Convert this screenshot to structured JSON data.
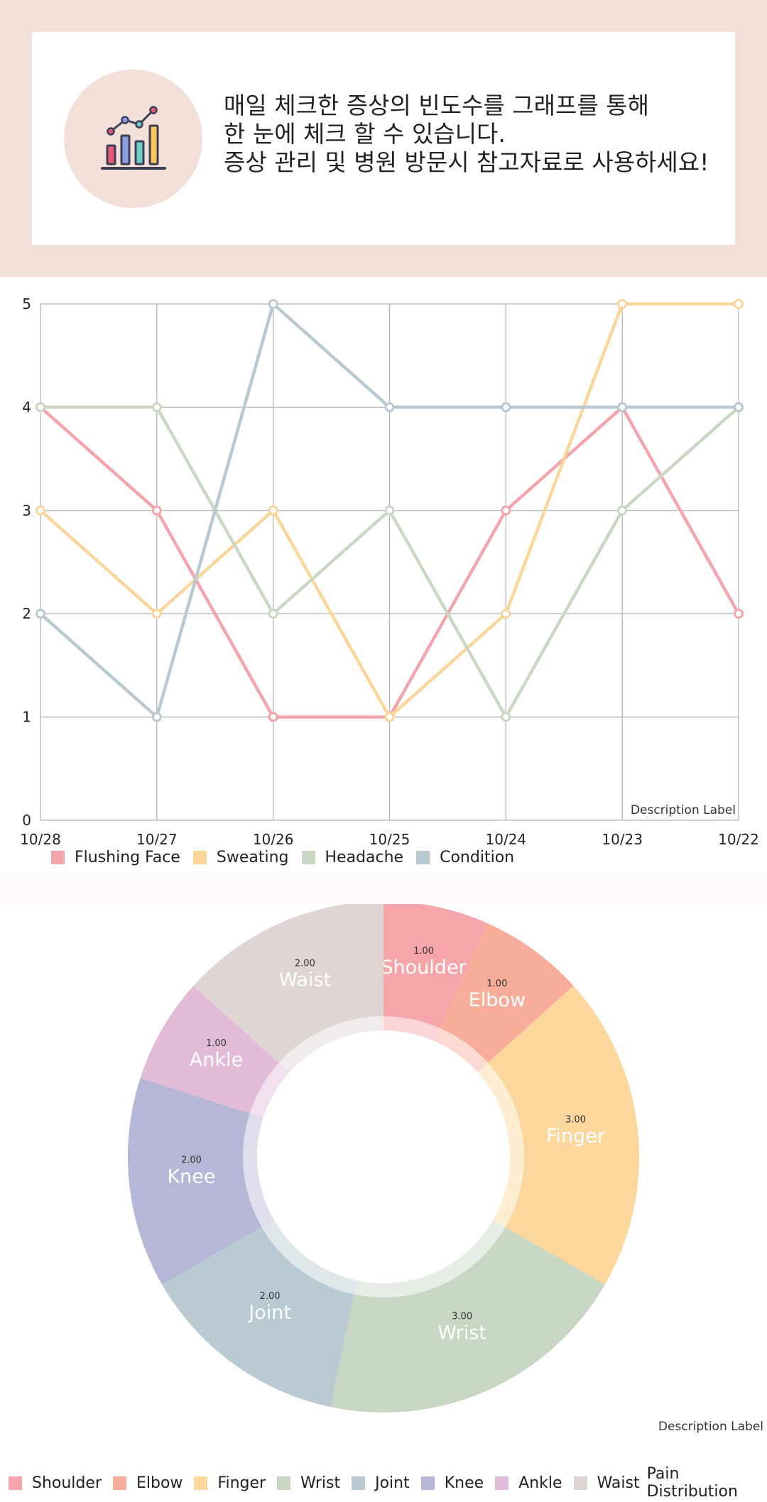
{
  "intro": {
    "lines": [
      "매일 체크한 증상의 빈도수를 그래프를 통해",
      "한 눈에 체크 할 수 있습니다.",
      "증상 관리 및 병원 방문시 참고자료로 사용하세요!"
    ],
    "icon": "bar-chart-icon"
  },
  "chart_data": [
    {
      "type": "line",
      "categories": [
        "10/28",
        "10/27",
        "10/26",
        "10/25",
        "10/24",
        "10/23",
        "10/22"
      ],
      "y_ticks": [
        "0",
        "1",
        "2",
        "3",
        "4",
        "5"
      ],
      "ylim": [
        0,
        5
      ],
      "grid": true,
      "description_label": "Description Label",
      "legend_position": "bottom-left",
      "series": [
        {
          "name": "Flushing Face",
          "color": "#f4a5ab",
          "values": [
            4,
            3,
            1,
            1,
            3,
            4,
            2
          ]
        },
        {
          "name": "Sweating",
          "color": "#fbd69b",
          "values": [
            3,
            2,
            3,
            1,
            2,
            5,
            5
          ]
        },
        {
          "name": "Headache",
          "color": "#c9d7c3",
          "values": [
            4,
            4,
            2,
            3,
            1,
            3,
            4
          ]
        },
        {
          "name": "Condition",
          "color": "#b9c9d1",
          "values": [
            2,
            1,
            5,
            4,
            4,
            4,
            4
          ]
        }
      ]
    },
    {
      "type": "pie",
      "donut": true,
      "title": "Pain Distribution",
      "description_label": "Description Label",
      "legend_position": "bottom",
      "slices": [
        {
          "label": "Shoulder",
          "value": 1,
          "value_label": "1.00",
          "color": "#f6a5aa"
        },
        {
          "label": "Elbow",
          "value": 1,
          "value_label": "1.00",
          "color": "#f7ad99"
        },
        {
          "label": "Finger",
          "value": 3,
          "value_label": "3.00",
          "color": "#fbd79e"
        },
        {
          "label": "Wrist",
          "value": 3,
          "value_label": "3.00",
          "color": "#c8d7c4"
        },
        {
          "label": "Joint",
          "value": 2,
          "value_label": "2.00",
          "color": "#b9cad3"
        },
        {
          "label": "Knee",
          "value": 2,
          "value_label": "2.00",
          "color": "#b6b7d6"
        },
        {
          "label": "Ankle",
          "value": 1,
          "value_label": "1.00",
          "color": "#e2bbd9"
        },
        {
          "label": "Waist",
          "value": 2,
          "value_label": "2.00",
          "color": "#dfd6d4"
        }
      ]
    }
  ]
}
